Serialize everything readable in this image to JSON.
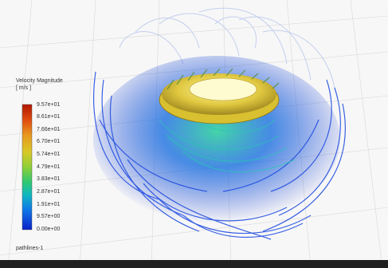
{
  "colorbar": {
    "title_line1": "Velocity Magnitude",
    "title_line2": "[ m/s ]",
    "ticks": [
      "9.57e+01",
      "8.61e+01",
      "7.66e+01",
      "6.70e+01",
      "5.74e+01",
      "4.79e+01",
      "3.83e+01",
      "2.87e+01",
      "1.91e+01",
      "9.57e+00",
      "0.00e+00"
    ],
    "colors": [
      "#cc2200",
      "#e05010",
      "#e89020",
      "#d8c028",
      "#b8d030",
      "#60c848",
      "#20c080",
      "#10b8c0",
      "#1080e0",
      "#1040e8",
      "#0a20c0"
    ]
  },
  "caption": "pathlines-1"
}
